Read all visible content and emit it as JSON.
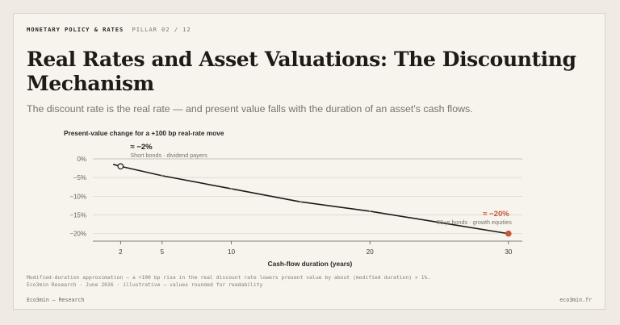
{
  "header": {
    "section": "MONETARY POLICY & RATES",
    "pillar": "PILLAR 02 / 12",
    "title": "Real Rates and Asset Valuations: The Discounting Mechanism",
    "subtitle": "The discount rate is the real rate — and present value falls with the duration of an asset's cash flows."
  },
  "colors": {
    "line": "#1e1a17",
    "accent": "#c4583a",
    "grid": "#ddd7cc",
    "axis": "#5f574e"
  },
  "chart_data": {
    "type": "line",
    "title": "Present-value change for a +100 bp real-rate move",
    "xlabel": "Cash-flow duration (years)",
    "ylabel": "",
    "x": [
      1.5,
      2,
      5,
      10,
      15,
      20,
      25,
      30
    ],
    "series": [
      {
        "values": [
          -1.5,
          -2,
          -4.5,
          -8,
          -11.5,
          -14,
          -17,
          -20
        ]
      }
    ],
    "xlim": [
      0,
      31
    ],
    "ylim": [
      -22,
      0
    ],
    "xticks": [
      2,
      5,
      10,
      20,
      30
    ],
    "yticks": [
      0,
      -5,
      -10,
      -15,
      -20
    ],
    "ytick_labels": [
      "0%",
      "−5%",
      "−10%",
      "−15%",
      "−20%"
    ],
    "grid": true,
    "annotations": [
      {
        "x": 2,
        "y": -2,
        "value": "≈ −2%",
        "label": "Short bonds · dividend payers",
        "marker": "open-circle",
        "position": "above"
      },
      {
        "x": 30,
        "y": -20,
        "value": "≈ −20%",
        "label": "30-yr bonds · growth equities",
        "marker": "filled-circle",
        "position": "above-left"
      }
    ]
  },
  "footnotes": {
    "line1": "Modified-duration approximation — a +100 bp rise in the real discount rate lowers present value by about (modified duration) × 1%.",
    "line2": "Eco3min Research · June 2026 · illustrative — values rounded for readability"
  },
  "footer": {
    "left": "Eco3min — Research",
    "right": "eco3min.fr"
  }
}
